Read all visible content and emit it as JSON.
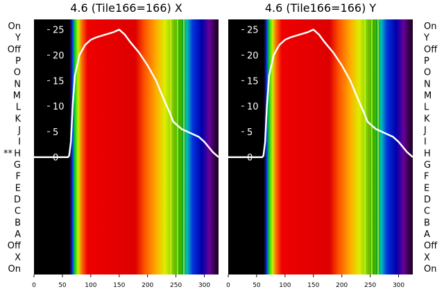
{
  "chart_data": [
    {
      "type": "heatmap",
      "title": "4.6 (Tile166=166) X",
      "row_labels": [
        "On",
        "Y",
        "Off",
        "P",
        "O",
        "N",
        "M",
        "L",
        "K",
        "J",
        "I",
        "H",
        "G",
        "F",
        "E",
        "D",
        "C",
        "B",
        "A",
        "Off",
        "X",
        "On"
      ],
      "marked_row": {
        "label": "H",
        "marker": "**"
      },
      "x_ticks": [
        0,
        50,
        100,
        150,
        200,
        250,
        300
      ],
      "xlim": [
        0,
        325
      ],
      "y_ticks": [
        0,
        5,
        10,
        15,
        20,
        25
      ],
      "ylim": [
        -23,
        27
      ],
      "color_scale": "spectral (black, purple, blue, green, yellow, red)",
      "spectrum_edges": {
        "black_until": 62,
        "red_from": 90,
        "red_until": 190,
        "green_band": [
          230,
          268
        ],
        "blue_band": [
          272,
          300
        ],
        "purple_until": 318
      },
      "line": {
        "color": "#ffffff",
        "x": [
          0,
          60,
          62,
          65,
          68,
          72,
          80,
          90,
          100,
          110,
          125,
          140,
          150,
          160,
          170,
          185,
          200,
          215,
          230,
          240,
          245,
          250,
          255,
          260,
          270,
          280,
          290,
          300,
          315,
          325
        ],
        "y": [
          0,
          0,
          0.3,
          3,
          10,
          16,
          20,
          22,
          23,
          23.5,
          24,
          24.5,
          25,
          24,
          22.5,
          20.5,
          18,
          15,
          11,
          8.5,
          7,
          6.5,
          6,
          5.5,
          5,
          4.5,
          4,
          3,
          1,
          0
        ]
      }
    },
    {
      "type": "heatmap",
      "title": "4.6 (Tile166=166) Y",
      "row_labels": [
        "On",
        "Y",
        "Off",
        "P",
        "O",
        "N",
        "M",
        "L",
        "K",
        "J",
        "I",
        "H",
        "G",
        "F",
        "E",
        "D",
        "C",
        "B",
        "A",
        "Off",
        "X",
        "On"
      ],
      "x_ticks": [
        0,
        50,
        100,
        150,
        200,
        250,
        300
      ],
      "xlim": [
        0,
        325
      ],
      "y_ticks": [
        0,
        5,
        10,
        15,
        20,
        25
      ],
      "ylim": [
        -23,
        27
      ],
      "color_scale": "spectral (black, purple, blue, green, yellow, red)",
      "spectrum_edges": {
        "black_until": 62,
        "red_from": 90,
        "red_until": 190,
        "green_band": [
          230,
          268
        ],
        "blue_band": [
          272,
          300
        ],
        "purple_until": 318
      },
      "line": {
        "color": "#ffffff",
        "x": [
          0,
          60,
          62,
          65,
          68,
          72,
          80,
          90,
          100,
          110,
          125,
          140,
          150,
          160,
          170,
          185,
          200,
          215,
          230,
          240,
          245,
          250,
          255,
          260,
          270,
          280,
          290,
          300,
          315,
          325
        ],
        "y": [
          0,
          0,
          0.3,
          3,
          10,
          16,
          20,
          22,
          23,
          23.5,
          24,
          24.5,
          25,
          24,
          22.5,
          20.5,
          18,
          15,
          11,
          8.5,
          7,
          6.5,
          6,
          5.5,
          5,
          4.5,
          4,
          3,
          1,
          0
        ]
      }
    }
  ]
}
